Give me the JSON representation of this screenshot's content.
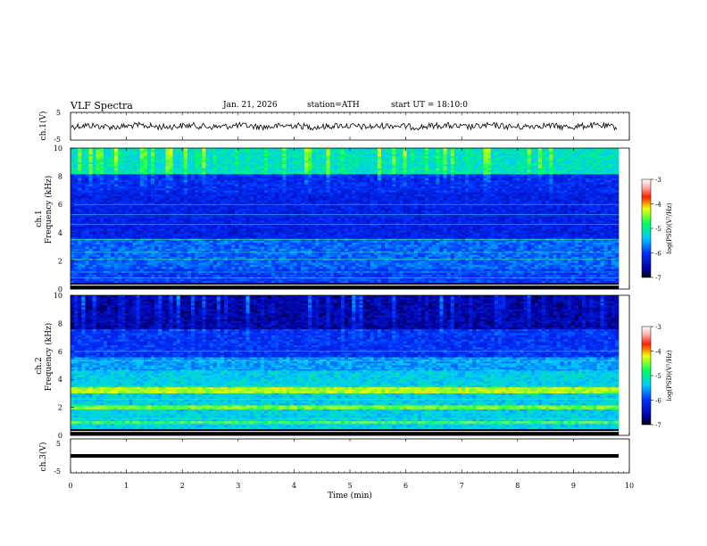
{
  "header": {
    "title": "VLF Spectra",
    "date": "Jan. 21, 2026",
    "station": "station=ATH",
    "start_ut": "start UT =  18:10:0"
  },
  "chart_data": [
    {
      "type": "line",
      "name": "ch1-waveform",
      "ylabel": "ch.1(V)",
      "ylim": [
        -5,
        5
      ],
      "yticks": [
        "5",
        "-5"
      ],
      "x_range_min": [
        0,
        9.8
      ],
      "description_level": "noise around 0 V"
    },
    {
      "type": "heatmap",
      "name": "ch1-spectrogram",
      "ylabel_line1": "ch.1",
      "ylabel_line2": "Frequency (kHz)",
      "ylim": [
        0,
        10
      ],
      "yticks": [
        "0",
        "2",
        "4",
        "6",
        "8",
        "10"
      ],
      "colorbar": {
        "label": "log(PSD)(V²/Hz)",
        "ticks": [
          "-3",
          "-4",
          "-5",
          "-6",
          "-7"
        ],
        "range": [
          -7,
          -3
        ]
      }
    },
    {
      "type": "heatmap",
      "name": "ch2-spectrogram",
      "ylabel_line1": "ch.2",
      "ylabel_line2": "Frequency (kHz)",
      "ylim": [
        0,
        10
      ],
      "yticks": [
        "0",
        "2",
        "4",
        "6",
        "8",
        "10"
      ],
      "colorbar": {
        "label": "log(PSD)(V²/Hz)",
        "ticks": [
          "-3",
          "-4",
          "-5",
          "-6",
          "-7"
        ],
        "range": [
          -7,
          -3
        ]
      }
    },
    {
      "type": "line",
      "name": "ch3-waveform",
      "ylabel": "ch.3(V)",
      "ylim": [
        -5,
        5
      ],
      "yticks": [
        "5",
        "-5"
      ],
      "description_level": "flat near -1.5 V"
    }
  ],
  "xaxis": {
    "label": "Time (min)",
    "range": [
      0,
      10
    ],
    "ticks": [
      "0",
      "1",
      "2",
      "3",
      "4",
      "5",
      "6",
      "7",
      "8",
      "9",
      "10"
    ]
  },
  "colors": {
    "axis": "#000000",
    "trace": "#000000",
    "background": "#ffffff"
  }
}
